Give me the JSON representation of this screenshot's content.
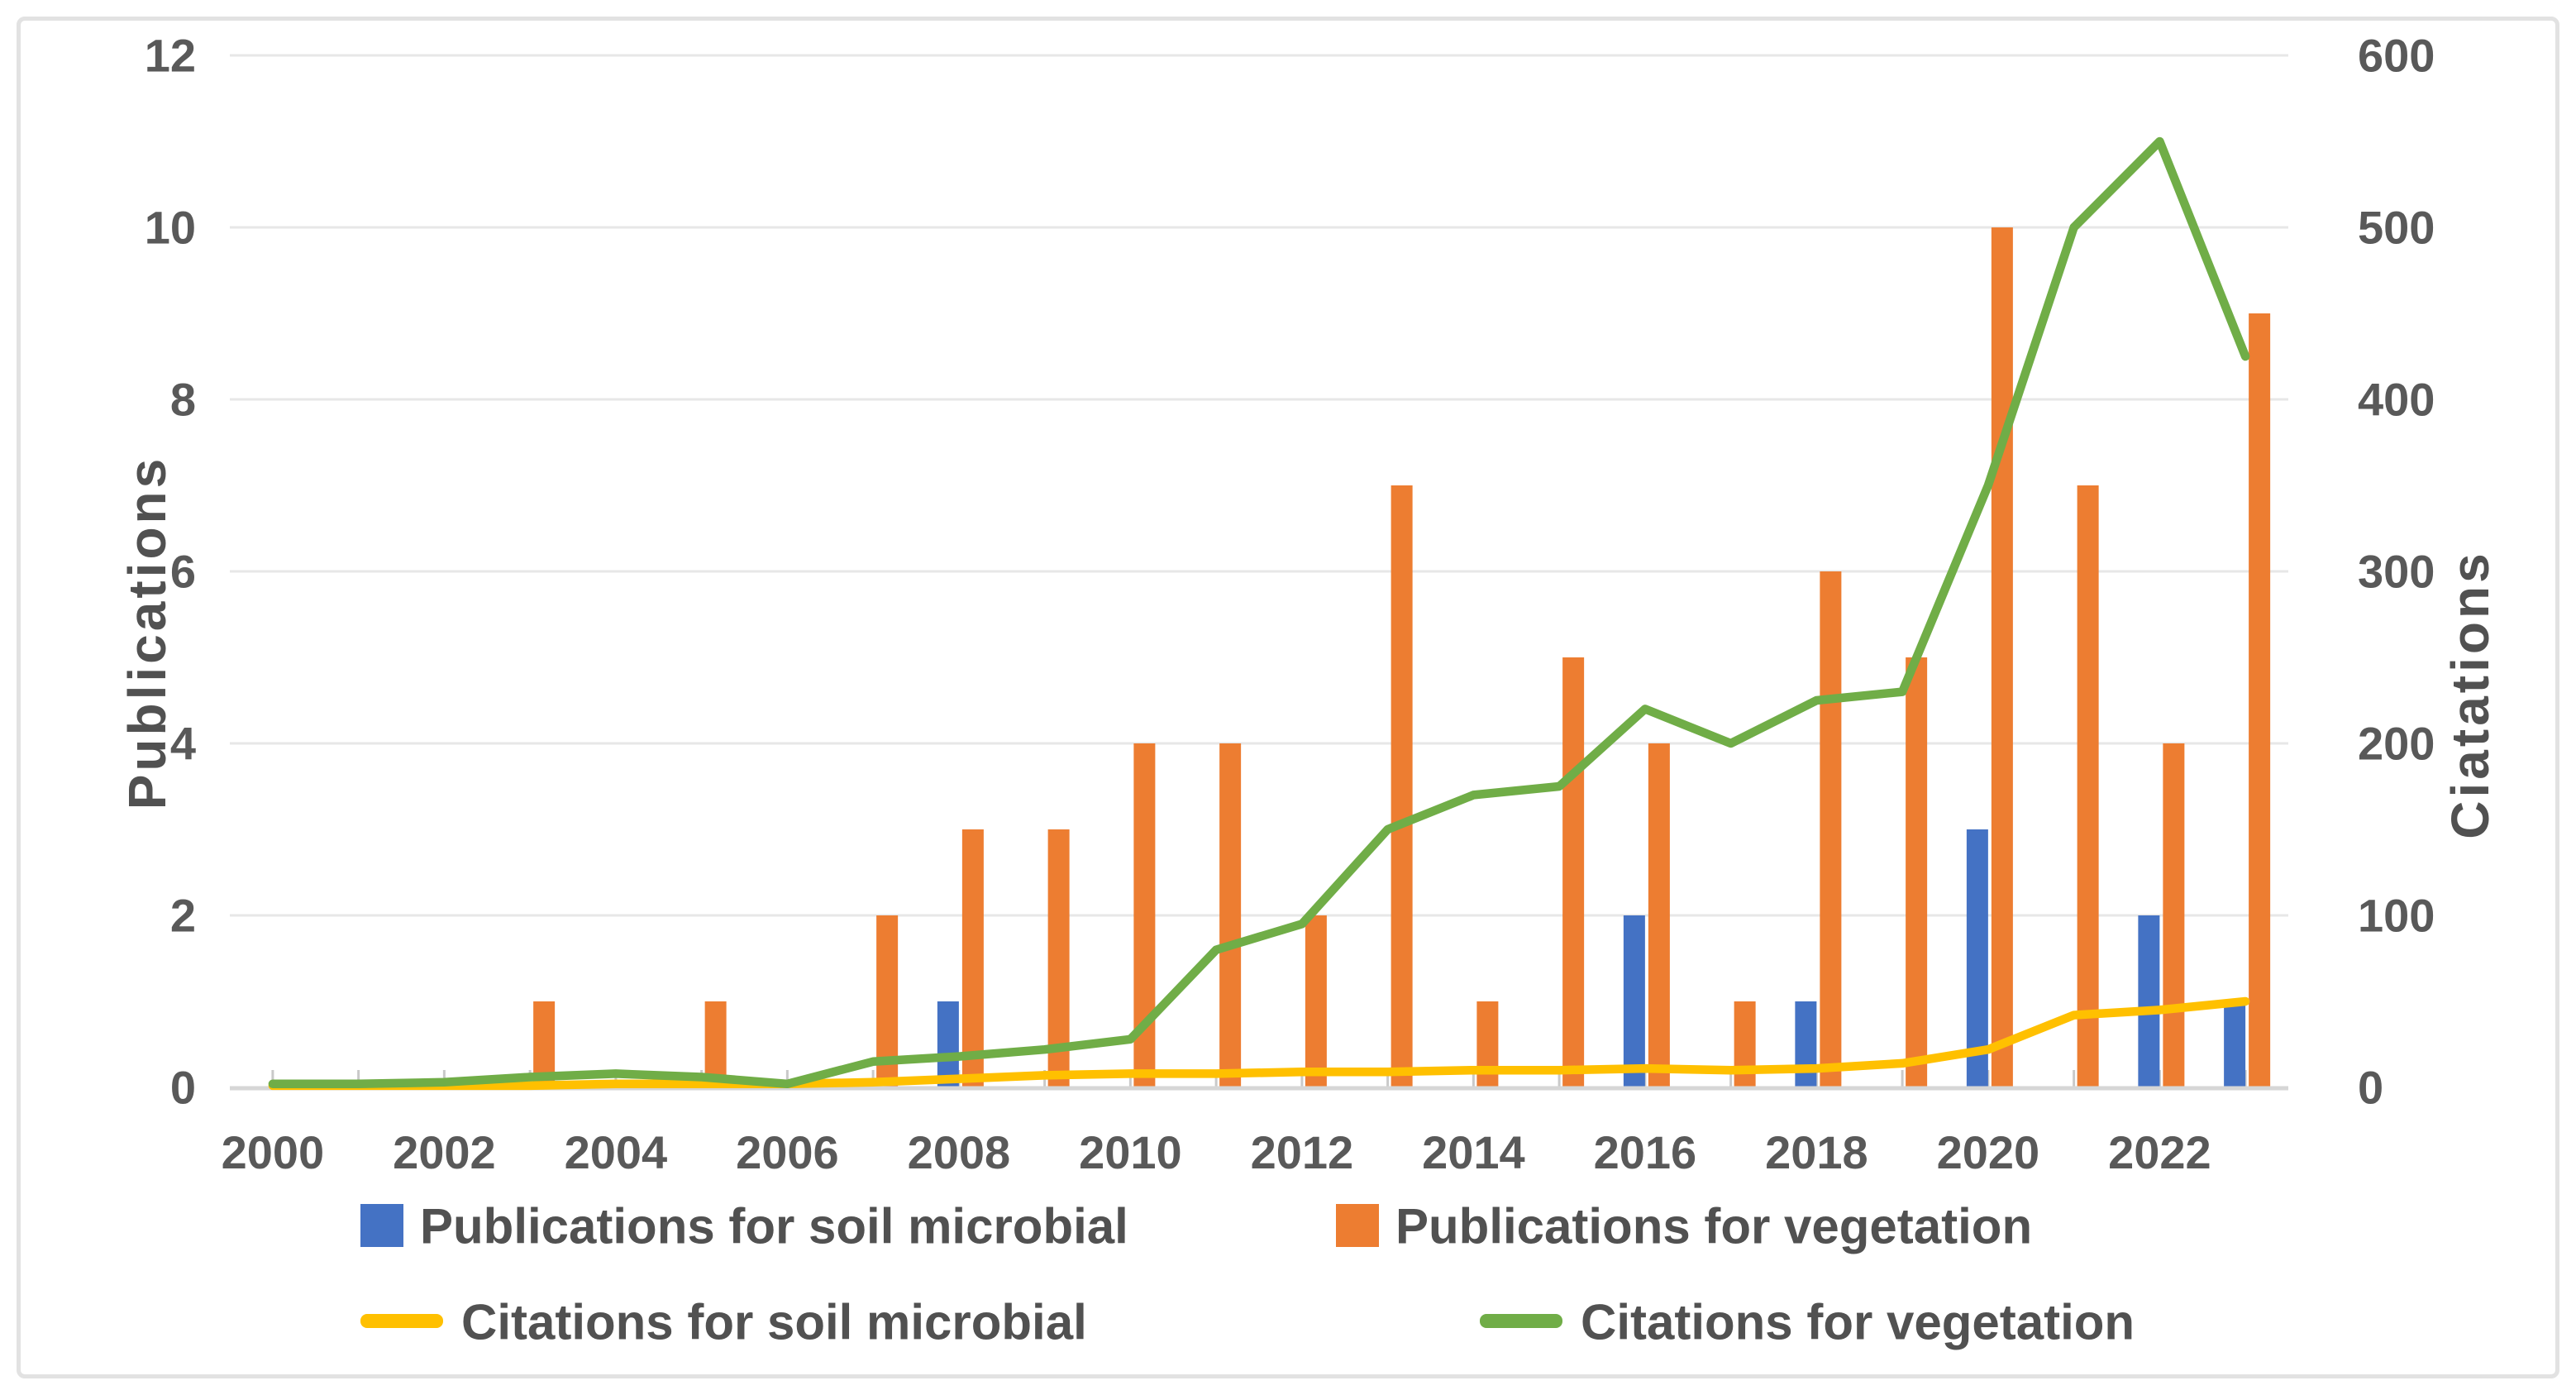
{
  "chart_data": {
    "type": "bar+line",
    "title": "",
    "x": [
      2000,
      2001,
      2002,
      2003,
      2004,
      2005,
      2006,
      2007,
      2008,
      2009,
      2010,
      2011,
      2012,
      2013,
      2014,
      2015,
      2016,
      2017,
      2018,
      2019,
      2020,
      2021,
      2022,
      2023
    ],
    "x_tick_labels": [
      "2000",
      "2002",
      "2004",
      "2006",
      "2008",
      "2010",
      "2012",
      "2014",
      "2016",
      "2018",
      "2020",
      "2022"
    ],
    "series": [
      {
        "name": "Publications for soil microbial",
        "type": "bar",
        "axis": "left",
        "color": "#4472C4",
        "values": [
          0,
          0,
          0,
          0,
          0,
          0,
          0,
          0,
          1,
          0,
          0,
          0,
          0,
          0,
          0,
          0,
          2,
          0,
          1,
          0,
          3,
          0,
          2,
          1
        ]
      },
      {
        "name": "Publications for vegetation",
        "type": "bar",
        "axis": "left",
        "color": "#ED7D31",
        "values": [
          0,
          0,
          0,
          1,
          0,
          1,
          0,
          2,
          3,
          3,
          4,
          4,
          2,
          7,
          1,
          5,
          4,
          1,
          6,
          5,
          10,
          7,
          4,
          9
        ]
      },
      {
        "name": "Citations for soil microbial",
        "type": "line",
        "axis": "right",
        "color": "#FFC000",
        "values": [
          1,
          1,
          1,
          1,
          2,
          2,
          2,
          3,
          5,
          7,
          8,
          8,
          9,
          9,
          10,
          10,
          11,
          10,
          11,
          14,
          22,
          42,
          45,
          50
        ]
      },
      {
        "name": "Citations for vegetation",
        "type": "line",
        "axis": "right",
        "color": "#70AD47",
        "values": [
          2,
          2,
          3,
          6,
          8,
          6,
          2,
          15,
          18,
          22,
          28,
          80,
          95,
          150,
          170,
          175,
          220,
          200,
          225,
          230,
          350,
          500,
          550,
          425
        ]
      }
    ],
    "left_axis": {
      "title": "Publications",
      "min": 0,
      "max": 12,
      "tick_step": 2,
      "ticks": [
        "0",
        "2",
        "4",
        "6",
        "8",
        "10",
        "12"
      ]
    },
    "right_axis": {
      "title": "Ciatations",
      "min": 0,
      "max": 600,
      "tick_step": 100,
      "ticks": [
        "0",
        "100",
        "200",
        "300",
        "400",
        "500",
        "600"
      ]
    },
    "grid": true,
    "legend_position": "bottom"
  },
  "legend": {
    "items": [
      {
        "label": "Publications for soil microbial",
        "color": "#4472C4",
        "swatch": "square"
      },
      {
        "label": "Publications for vegetation",
        "color": "#ED7D31",
        "swatch": "square"
      },
      {
        "label": "Citations for soil microbial",
        "color": "#FFC000",
        "swatch": "line"
      },
      {
        "label": "Citations for vegetation",
        "color": "#70AD47",
        "swatch": "line"
      }
    ]
  },
  "colors": {
    "gridline": "#e7e7e7",
    "axis_line": "#d6d6d6",
    "tick_mark": "#c9c9c9",
    "tick_text": "#595959"
  }
}
